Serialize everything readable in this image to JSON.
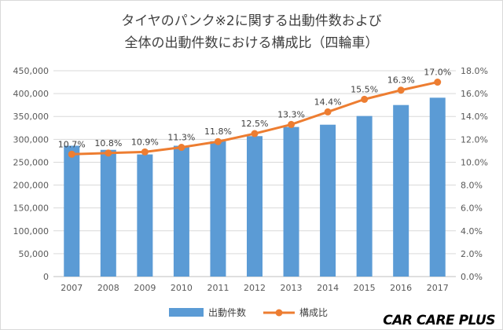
{
  "title_line1": "タイヤのパンク※2に関する出動件数および",
  "title_line2": "全体の出動件数における構成比（四輪車）",
  "logo": "CAR CARE PLUS",
  "colors": {
    "bar": "#5b9bd5",
    "line": "#ed7d31",
    "grid": "#d9d9d9",
    "axis": "#bfbfbf"
  },
  "chart_data": {
    "type": "bar",
    "categories": [
      "2007",
      "2008",
      "2009",
      "2010",
      "2011",
      "2012",
      "2013",
      "2014",
      "2015",
      "2016",
      "2017"
    ],
    "series": [
      {
        "name": "出動件数",
        "type": "bar",
        "axis": "left",
        "values": [
          286000,
          277000,
          267000,
          286000,
          296000,
          307000,
          327000,
          332000,
          351000,
          375000,
          391000
        ]
      },
      {
        "name": "構成比",
        "type": "line",
        "axis": "right",
        "values": [
          10.7,
          10.8,
          10.9,
          11.3,
          11.8,
          12.5,
          13.3,
          14.4,
          15.5,
          16.3,
          17.0
        ],
        "labels": [
          "10.7%",
          "10.8%",
          "10.9%",
          "11.3%",
          "11.8%",
          "12.5%",
          "13.3%",
          "14.4%",
          "15.5%",
          "16.3%",
          "17.0%"
        ]
      }
    ],
    "ylim_left": [
      0,
      450000
    ],
    "ylim_right": [
      0,
      18
    ],
    "yticks_left": [
      "0",
      "50,000",
      "100,000",
      "150,000",
      "200,000",
      "250,000",
      "300,000",
      "350,000",
      "400,000",
      "450,000"
    ],
    "yticks_right": [
      "0.0%",
      "2.0%",
      "4.0%",
      "6.0%",
      "8.0%",
      "10.0%",
      "12.0%",
      "14.0%",
      "16.0%",
      "18.0%"
    ],
    "grid": true,
    "legend_position": "bottom"
  }
}
